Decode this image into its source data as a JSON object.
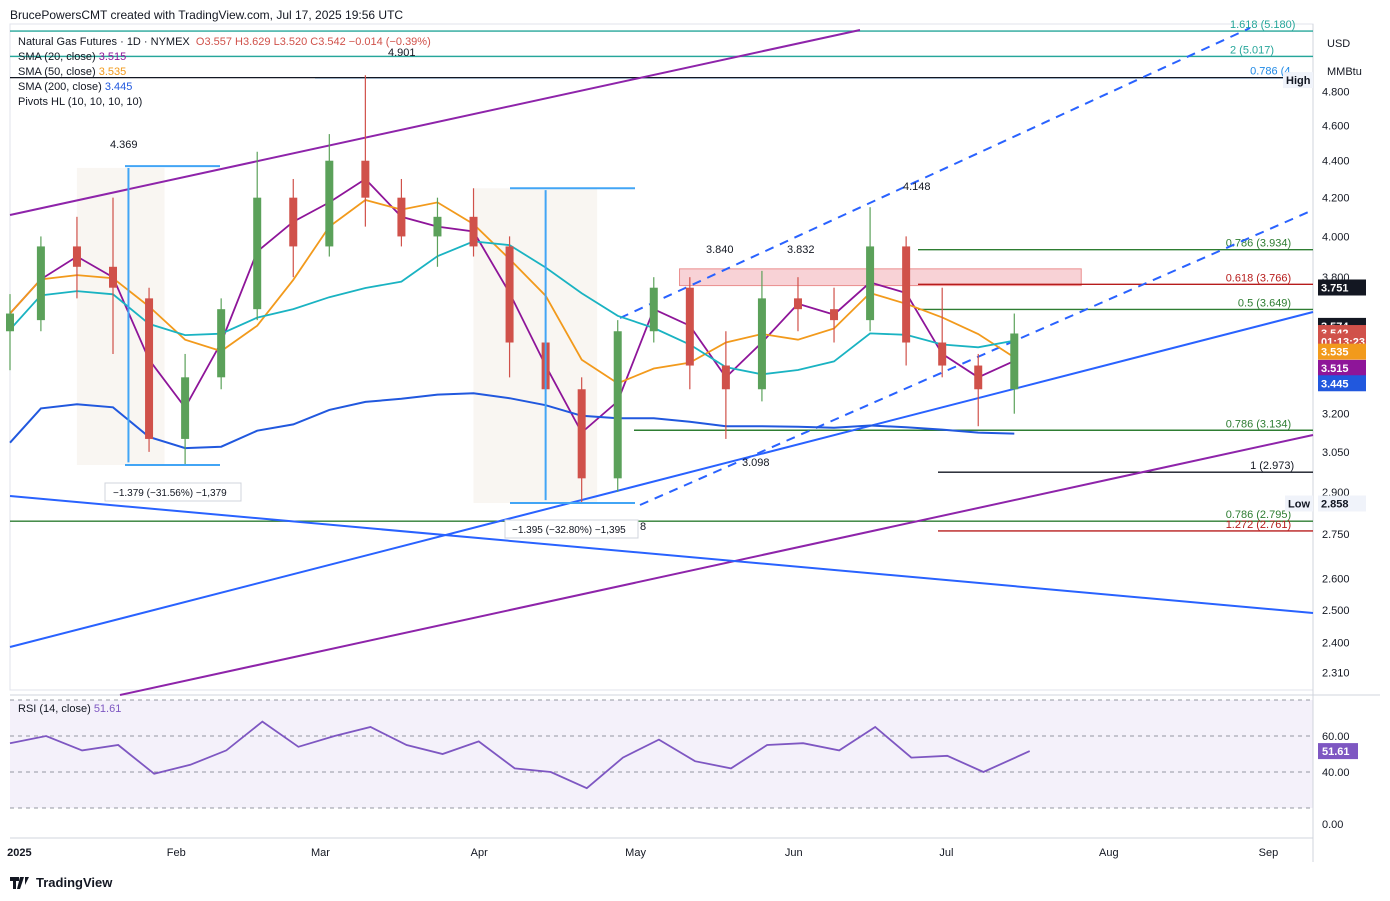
{
  "header": {
    "author": "BrucePowersCMT created with TradingView.com, Jul 17, 2025 19:56 UTC"
  },
  "legend": {
    "symbol": "Natural Gas Futures · 1D · NYMEX",
    "ohlc": "O3.557  H3.629  L3.520  C3.542  −0.014 (−0.39%)",
    "sma20_label": "SMA (20, close)",
    "sma20_value": "3.515",
    "sma50_label": "SMA (50, close)",
    "sma50_value": "3.535",
    "sma200_label": "SMA (200, close)",
    "sma200_value": "3.445",
    "pivots_label": "Pivots HL (10, 10, 10, 10)"
  },
  "colors": {
    "up": "#5ba15a",
    "down": "#d0514a",
    "sma20": "#8e1599",
    "sma50": "#f29a1c",
    "sma200": "#2158de",
    "sma_aqua": "#1ab3c2",
    "channel": "#8e24aa",
    "trend": "#2962ff",
    "fib_green": "#2e7d32",
    "fib_red": "#b71c1c"
  },
  "footer": {
    "brand": "TradingView"
  },
  "rsi": {
    "label": "RSI (14, close)",
    "value": "51.61",
    "levels": [
      "60.00",
      "40.00",
      "0.00"
    ]
  },
  "axis": {
    "currency": "USD",
    "unit": "MMBtu",
    "price_ticks": [
      "4.800",
      "4.600",
      "4.400",
      "4.200",
      "4.000",
      "3.800",
      "3.200",
      "3.050",
      "2.900",
      "2.750",
      "2.600",
      "2.500",
      "2.400",
      "2.310"
    ],
    "x_labels": [
      "2025",
      "Feb",
      "Mar",
      "Apr",
      "May",
      "Jun",
      "Jul",
      "Aug",
      "Sep"
    ]
  },
  "price_tags": [
    {
      "text": "High",
      "price": 4.87
    },
    {
      "text": "3.751",
      "price": 3.751
    },
    {
      "text": "3.574",
      "price": 3.574
    },
    {
      "text": "3.542",
      "price": 3.542
    },
    {
      "text": "01:13:23",
      "price": 3.505
    },
    {
      "text": "3.535",
      "price": 3.46
    },
    {
      "text": "3.515",
      "price": 3.39
    },
    {
      "text": "3.445",
      "price": 3.325
    },
    {
      "text": "Low",
      "price": 2.858
    },
    {
      "text": "2.858",
      "price": 2.858
    }
  ],
  "annotations": {
    "pivot_high_1": "4.369",
    "pivot_high_2": "4.901",
    "pivot_high_3": "3.840",
    "pivot_high_4": "3.832",
    "pivot_high_5": "4.148",
    "pivot_low_1": "3.098",
    "pivot_low_2": "8",
    "measure_1": "−1.379 (−31.56%) −1,379",
    "measure_2": "−1.395 (−32.80%) −1,395"
  },
  "fib_levels": [
    {
      "label": "1.618 (5.180)",
      "price": 5.18
    },
    {
      "label": "2 (5.017)",
      "price": 5.017
    },
    {
      "label": "0.786 (4.",
      "price": 4.885
    },
    {
      "label": "0.786 (3.934)",
      "price": 3.934
    },
    {
      "label": "0.618 (3.766)",
      "price": 3.766
    },
    {
      "label": "0.5 (3.649)",
      "price": 3.649
    },
    {
      "label": "0.786 (3.134)",
      "price": 3.134
    },
    {
      "label": "1 (2.973)",
      "price": 2.973
    },
    {
      "label": "0.786 (2.795)",
      "price": 2.795
    },
    {
      "label": "1.272 (2.761)",
      "price": 2.761
    }
  ],
  "chart_data": {
    "type": "candlestick",
    "title": "Natural Gas Futures · 1D · NYMEX",
    "ylabel": "USD / MMBtu",
    "ylim": [
      2.26,
      5.2
    ],
    "log_scale": true,
    "x_range": [
      "2024-12-31",
      "2025-09-10"
    ],
    "last": {
      "open": 3.557,
      "high": 3.629,
      "low": 3.52,
      "close": 3.542,
      "change": -0.014,
      "change_pct": -0.39
    },
    "series": [
      {
        "name": "SMA (20, close)",
        "last": 3.515
      },
      {
        "name": "SMA (50, close)",
        "last": 3.535
      },
      {
        "name": "SMA (200, close)",
        "last": 3.445
      }
    ],
    "candles": [
      {
        "date": "2024-12-31",
        "o": 3.55,
        "h": 3.72,
        "l": 3.38,
        "c": 3.63
      },
      {
        "date": "2025-01-06",
        "o": 3.6,
        "h": 4.0,
        "l": 3.55,
        "c": 3.95
      },
      {
        "date": "2025-01-13",
        "o": 3.95,
        "h": 4.1,
        "l": 3.7,
        "c": 3.85
      },
      {
        "date": "2025-01-20",
        "o": 3.85,
        "h": 4.2,
        "l": 3.45,
        "c": 3.75
      },
      {
        "date": "2025-01-27",
        "o": 3.7,
        "h": 3.75,
        "l": 3.05,
        "c": 3.1
      },
      {
        "date": "2025-02-03",
        "o": 3.1,
        "h": 3.45,
        "l": 3.0,
        "c": 3.35
      },
      {
        "date": "2025-02-10",
        "o": 3.35,
        "h": 3.7,
        "l": 3.3,
        "c": 3.65
      },
      {
        "date": "2025-02-17",
        "o": 3.65,
        "h": 4.45,
        "l": 3.6,
        "c": 4.2
      },
      {
        "date": "2025-02-24",
        "o": 4.2,
        "h": 4.3,
        "l": 3.8,
        "c": 3.95
      },
      {
        "date": "2025-03-03",
        "o": 3.95,
        "h": 4.55,
        "l": 3.9,
        "c": 4.4
      },
      {
        "date": "2025-03-10",
        "o": 4.4,
        "h": 4.9,
        "l": 4.05,
        "c": 4.2
      },
      {
        "date": "2025-03-17",
        "o": 4.2,
        "h": 4.3,
        "l": 3.95,
        "c": 4.0
      },
      {
        "date": "2025-03-24",
        "o": 4.0,
        "h": 4.2,
        "l": 3.85,
        "c": 4.1
      },
      {
        "date": "2025-03-31",
        "o": 4.1,
        "h": 4.25,
        "l": 3.9,
        "c": 3.95
      },
      {
        "date": "2025-04-07",
        "o": 3.95,
        "h": 4.0,
        "l": 3.35,
        "c": 3.5
      },
      {
        "date": "2025-04-14",
        "o": 3.5,
        "h": 3.6,
        "l": 3.2,
        "c": 3.3
      },
      {
        "date": "2025-04-21",
        "o": 3.3,
        "h": 3.35,
        "l": 2.86,
        "c": 2.95
      },
      {
        "date": "2025-04-28",
        "o": 2.95,
        "h": 3.6,
        "l": 2.9,
        "c": 3.55
      },
      {
        "date": "2025-05-05",
        "o": 3.55,
        "h": 3.8,
        "l": 3.5,
        "c": 3.75
      },
      {
        "date": "2025-05-12",
        "o": 3.75,
        "h": 3.8,
        "l": 3.3,
        "c": 3.4
      },
      {
        "date": "2025-05-19",
        "o": 3.4,
        "h": 3.55,
        "l": 3.1,
        "c": 3.3
      },
      {
        "date": "2025-05-26",
        "o": 3.3,
        "h": 3.83,
        "l": 3.25,
        "c": 3.7
      },
      {
        "date": "2025-06-02",
        "o": 3.7,
        "h": 3.8,
        "l": 3.55,
        "c": 3.65
      },
      {
        "date": "2025-06-09",
        "o": 3.65,
        "h": 3.75,
        "l": 3.5,
        "c": 3.6
      },
      {
        "date": "2025-06-16",
        "o": 3.6,
        "h": 4.15,
        "l": 3.55,
        "c": 3.95
      },
      {
        "date": "2025-06-23",
        "o": 3.95,
        "h": 4.0,
        "l": 3.4,
        "c": 3.5
      },
      {
        "date": "2025-06-30",
        "o": 3.5,
        "h": 3.75,
        "l": 3.35,
        "c": 3.4
      },
      {
        "date": "2025-07-07",
        "o": 3.4,
        "h": 3.45,
        "l": 3.15,
        "c": 3.3
      },
      {
        "date": "2025-07-14",
        "o": 3.3,
        "h": 3.63,
        "l": 3.2,
        "c": 3.54
      }
    ],
    "rsi": [
      {
        "date": "2024-12-31",
        "v": 56
      },
      {
        "date": "2025-01-07",
        "v": 60
      },
      {
        "date": "2025-01-14",
        "v": 52
      },
      {
        "date": "2025-01-21",
        "v": 55
      },
      {
        "date": "2025-01-28",
        "v": 39
      },
      {
        "date": "2025-02-04",
        "v": 44
      },
      {
        "date": "2025-02-11",
        "v": 52
      },
      {
        "date": "2025-02-18",
        "v": 68
      },
      {
        "date": "2025-02-25",
        "v": 54
      },
      {
        "date": "2025-03-04",
        "v": 60
      },
      {
        "date": "2025-03-11",
        "v": 65
      },
      {
        "date": "2025-03-18",
        "v": 55
      },
      {
        "date": "2025-03-25",
        "v": 50
      },
      {
        "date": "2025-04-01",
        "v": 57
      },
      {
        "date": "2025-04-08",
        "v": 42
      },
      {
        "date": "2025-04-15",
        "v": 40
      },
      {
        "date": "2025-04-22",
        "v": 31
      },
      {
        "date": "2025-04-29",
        "v": 48
      },
      {
        "date": "2025-05-06",
        "v": 58
      },
      {
        "date": "2025-05-13",
        "v": 46
      },
      {
        "date": "2025-05-20",
        "v": 42
      },
      {
        "date": "2025-05-27",
        "v": 55
      },
      {
        "date": "2025-06-03",
        "v": 56
      },
      {
        "date": "2025-06-10",
        "v": 52
      },
      {
        "date": "2025-06-17",
        "v": 65
      },
      {
        "date": "2025-06-24",
        "v": 48
      },
      {
        "date": "2025-07-01",
        "v": 49
      },
      {
        "date": "2025-07-08",
        "v": 40
      },
      {
        "date": "2025-07-17",
        "v": 51.61
      }
    ]
  }
}
